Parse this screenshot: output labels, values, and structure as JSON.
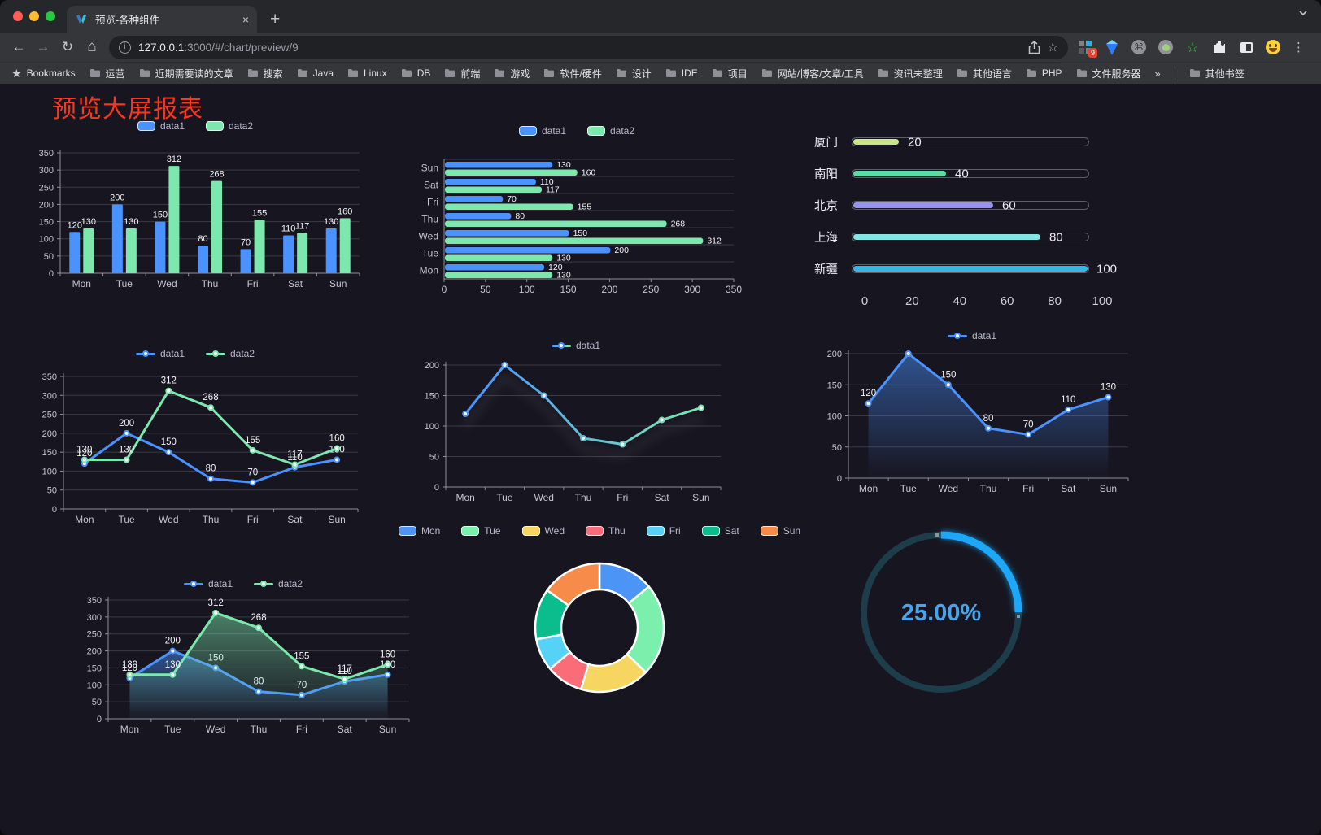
{
  "browser": {
    "tab": {
      "title": "预览-各种组件",
      "close_label": "×"
    },
    "new_tab_label": "+",
    "url": {
      "host": "127.0.0.1",
      "rest": ":3000/#/chart/preview/9"
    },
    "extensions_badge": "9",
    "bookmarks_bar": {
      "lead_label": "Bookmarks",
      "folders": [
        "运营",
        "近期需要读的文章",
        "搜索",
        "Java",
        "Linux",
        "DB",
        "前端",
        "游戏",
        "软件/硬件",
        "设计",
        "IDE",
        "项目",
        "网站/博客/文章/工具",
        "资讯未整理",
        "其他语言",
        "PHP",
        "文件服务器"
      ],
      "overflow_label": "»",
      "other_label": "其他书签"
    }
  },
  "page": {
    "title": "预览大屏报表",
    "title_color": "#f5381f",
    "background": "#17151f"
  },
  "chart_data": [
    {
      "id": "bar-vertical",
      "type": "bar",
      "categories": [
        "Mon",
        "Tue",
        "Wed",
        "Thu",
        "Fri",
        "Sat",
        "Sun"
      ],
      "series": [
        {
          "name": "data1",
          "color": "#4992ff",
          "values": [
            120,
            200,
            150,
            80,
            70,
            110,
            130
          ]
        },
        {
          "name": "data2",
          "color": "#7ce8ae",
          "values": [
            130,
            130,
            312,
            268,
            155,
            117,
            160
          ]
        }
      ],
      "ylim": [
        0,
        350
      ],
      "ystep": 50,
      "legend_position": "top",
      "grid": true
    },
    {
      "id": "bar-horizontal",
      "type": "bar-horizontal",
      "categories": [
        "Mon",
        "Tue",
        "Wed",
        "Thu",
        "Fri",
        "Sat",
        "Sun"
      ],
      "series": [
        {
          "name": "data1",
          "color": "#4992ff",
          "values": [
            120,
            200,
            150,
            80,
            70,
            110,
            130
          ]
        },
        {
          "name": "data2",
          "color": "#7ce8ae",
          "values": [
            130,
            130,
            312,
            268,
            155,
            117,
            160
          ]
        }
      ],
      "xlim": [
        0,
        350
      ],
      "xstep": 50,
      "legend_position": "top"
    },
    {
      "id": "city-progress",
      "type": "progress",
      "max": 100,
      "axis_ticks": [
        0,
        20,
        40,
        60,
        80,
        100
      ],
      "items": [
        {
          "label": "厦门",
          "value": 20,
          "color": "#c9e687"
        },
        {
          "label": "南阳",
          "value": 40,
          "color": "#59dda5"
        },
        {
          "label": "北京",
          "value": 60,
          "color": "#9793f3"
        },
        {
          "label": "上海",
          "value": 80,
          "color": "#7fe6e3"
        },
        {
          "label": "新疆",
          "value": 100,
          "color": "#3bb3e4"
        }
      ]
    },
    {
      "id": "line-two",
      "type": "line",
      "categories": [
        "Mon",
        "Tue",
        "Wed",
        "Thu",
        "Fri",
        "Sat",
        "Sun"
      ],
      "series": [
        {
          "name": "data1",
          "color": "#4992ff",
          "values": [
            120,
            200,
            150,
            80,
            70,
            110,
            130
          ]
        },
        {
          "name": "data2",
          "color": "#7ce8ae",
          "values": [
            130,
            130,
            312,
            268,
            155,
            117,
            160
          ]
        }
      ],
      "ylim": [
        0,
        350
      ],
      "ystep": 50,
      "labels": true
    },
    {
      "id": "line-gradient",
      "type": "line",
      "categories": [
        "Mon",
        "Tue",
        "Wed",
        "Thu",
        "Fri",
        "Sat",
        "Sun"
      ],
      "series": [
        {
          "name": "data1",
          "gradient": [
            "#4992ff",
            "#7ce8ae"
          ],
          "color": "#4992ff",
          "values": [
            120,
            200,
            150,
            80,
            70,
            110,
            130
          ]
        }
      ],
      "ylim": [
        0,
        200
      ],
      "ystep": 50,
      "labels": false,
      "shadow": true
    },
    {
      "id": "line-area",
      "type": "line",
      "categories": [
        "Mon",
        "Tue",
        "Wed",
        "Thu",
        "Fri",
        "Sat",
        "Sun"
      ],
      "series": [
        {
          "name": "data1",
          "color": "#4992ff",
          "values": [
            120,
            200,
            150,
            80,
            70,
            110,
            130
          ],
          "area": true
        }
      ],
      "ylim": [
        0,
        200
      ],
      "ystep": 50,
      "labels": true
    },
    {
      "id": "line-two-area",
      "type": "line",
      "categories": [
        "Mon",
        "Tue",
        "Wed",
        "Thu",
        "Fri",
        "Sat",
        "Sun"
      ],
      "series": [
        {
          "name": "data1",
          "color": "#4992ff",
          "values": [
            120,
            200,
            150,
            80,
            70,
            110,
            130
          ],
          "area": true
        },
        {
          "name": "data2",
          "color": "#7ce8ae",
          "values": [
            130,
            130,
            312,
            268,
            155,
            117,
            160
          ],
          "area": true
        }
      ],
      "ylim": [
        0,
        350
      ],
      "ystep": 50,
      "labels": true
    },
    {
      "id": "donut",
      "type": "pie",
      "categories": [
        "Mon",
        "Tue",
        "Wed",
        "Thu",
        "Fri",
        "Sat",
        "Sun"
      ],
      "values": [
        120,
        200,
        150,
        80,
        70,
        110,
        130
      ],
      "colors": [
        "#4d94f7",
        "#7bf0ad",
        "#f6d560",
        "#f96c78",
        "#55d2f5",
        "#0bbd8c",
        "#f78b4a"
      ]
    },
    {
      "id": "gauge",
      "type": "gauge",
      "value": 25,
      "label": "25.00%",
      "color": "#1aa7f8",
      "track_color": "#1d3d4b",
      "text_color": "#4ba4e9"
    }
  ]
}
